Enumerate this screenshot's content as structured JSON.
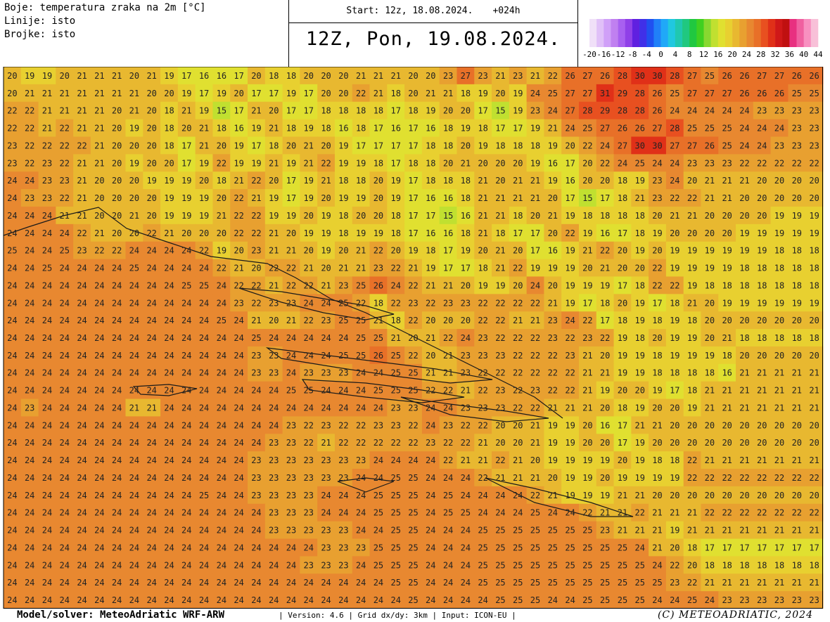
{
  "header": {
    "lines": [
      "Boje: temperatura zraka na 2m [°C]",
      "Linije: isto",
      "Brojke: isto"
    ],
    "start": "Start: 12z, 18.08.2024.",
    "lead": "+024h",
    "valid": "12Z, Pon, 19.08.2024."
  },
  "colorbar": {
    "lim": [
      -20,
      44
    ],
    "ticks": [
      -20,
      -16,
      -12,
      -8,
      -4,
      0,
      4,
      8,
      12,
      16,
      20,
      24,
      28,
      32,
      36,
      40,
      44
    ],
    "colors": [
      "#f0e0f8",
      "#e0c0f8",
      "#d0a0f8",
      "#c080f0",
      "#a860f0",
      "#9040e8",
      "#6020e0",
      "#4030e8",
      "#2050f0",
      "#2080f8",
      "#20a8f8",
      "#20c8e0",
      "#20c8b0",
      "#20c880",
      "#20c840",
      "#40d020",
      "#88d830",
      "#c0e030",
      "#e0e030",
      "#e8d030",
      "#e8b830",
      "#e8a030",
      "#e88830",
      "#e87028",
      "#e85020",
      "#e03018",
      "#d01818",
      "#c01010",
      "#e83080",
      "#f060a0",
      "#f890c0",
      "#f8c0d8"
    ]
  },
  "grid": [
    [
      20,
      19,
      19,
      20,
      21,
      21,
      21,
      20,
      21,
      19,
      17,
      16,
      16,
      17,
      20,
      18,
      18,
      20,
      20,
      20,
      21,
      21,
      21,
      20,
      20,
      23,
      27,
      23,
      21,
      23,
      21,
      22,
      26,
      27,
      26,
      28,
      30,
      30,
      28,
      27,
      25,
      26,
      26,
      27,
      27,
      26,
      26
    ],
    [
      20,
      21,
      21,
      21,
      21,
      21,
      21,
      21,
      20,
      20,
      19,
      17,
      19,
      20,
      17,
      17,
      19,
      17,
      20,
      20,
      22,
      21,
      18,
      20,
      21,
      21,
      18,
      19,
      20,
      19,
      24,
      25,
      27,
      27,
      31,
      29,
      28,
      26,
      25,
      27,
      27,
      27,
      26,
      26,
      26,
      25,
      25
    ],
    [
      22,
      22,
      21,
      21,
      21,
      21,
      20,
      21,
      20,
      18,
      21,
      19,
      15,
      17,
      21,
      20,
      17,
      17,
      18,
      18,
      18,
      18,
      17,
      18,
      19,
      20,
      20,
      17,
      15,
      19,
      23,
      24,
      27,
      28,
      29,
      28,
      28,
      26,
      24,
      24,
      24,
      24,
      24,
      23,
      23,
      23,
      23
    ],
    [
      22,
      22,
      21,
      22,
      21,
      21,
      20,
      19,
      20,
      18,
      20,
      21,
      18,
      16,
      19,
      21,
      18,
      19,
      18,
      16,
      18,
      17,
      16,
      17,
      16,
      18,
      19,
      18,
      17,
      17,
      19,
      21,
      24,
      25,
      27,
      26,
      26,
      27,
      28,
      25,
      25,
      25,
      24,
      24,
      24,
      23,
      23
    ],
    [
      23,
      22,
      22,
      22,
      22,
      21,
      20,
      20,
      20,
      18,
      17,
      21,
      20,
      19,
      17,
      18,
      20,
      21,
      20,
      19,
      17,
      17,
      17,
      17,
      18,
      18,
      20,
      19,
      18,
      18,
      18,
      19,
      20,
      22,
      24,
      27,
      30,
      30,
      27,
      27,
      26,
      25,
      24,
      24,
      23,
      23,
      23
    ],
    [
      23,
      22,
      23,
      22,
      21,
      21,
      20,
      19,
      20,
      20,
      17,
      19,
      22,
      19,
      19,
      21,
      19,
      21,
      22,
      19,
      19,
      18,
      17,
      18,
      18,
      20,
      21,
      20,
      20,
      20,
      19,
      16,
      17,
      20,
      22,
      24,
      25,
      24,
      24,
      23,
      23,
      23,
      22,
      22,
      22,
      22,
      22
    ],
    [
      24,
      24,
      23,
      23,
      21,
      20,
      20,
      20,
      19,
      19,
      19,
      20,
      18,
      21,
      22,
      20,
      17,
      19,
      21,
      18,
      18,
      20,
      19,
      17,
      18,
      18,
      18,
      21,
      20,
      21,
      21,
      19,
      16,
      20,
      20,
      18,
      19,
      23,
      24,
      20,
      21,
      21,
      21,
      20,
      20,
      20,
      20
    ],
    [
      24,
      23,
      23,
      22,
      21,
      20,
      20,
      20,
      20,
      19,
      19,
      19,
      20,
      22,
      21,
      19,
      17,
      19,
      20,
      19,
      19,
      20,
      19,
      17,
      16,
      16,
      18,
      21,
      21,
      21,
      21,
      20,
      17,
      15,
      17,
      18,
      21,
      23,
      22,
      22,
      21,
      21,
      20,
      20,
      20,
      20,
      20
    ],
    [
      24,
      24,
      24,
      21,
      21,
      20,
      20,
      21,
      20,
      19,
      19,
      19,
      21,
      22,
      22,
      19,
      19,
      20,
      19,
      18,
      20,
      20,
      18,
      17,
      17,
      15,
      16,
      21,
      21,
      18,
      20,
      21,
      19,
      18,
      18,
      18,
      18,
      20,
      21,
      21,
      20,
      20,
      20,
      20,
      19,
      19,
      19
    ],
    [
      24,
      24,
      24,
      24,
      22,
      21,
      20,
      20,
      22,
      21,
      20,
      20,
      20,
      22,
      22,
      21,
      20,
      19,
      19,
      18,
      19,
      19,
      18,
      17,
      16,
      16,
      18,
      21,
      18,
      17,
      17,
      20,
      22,
      19,
      16,
      17,
      18,
      19,
      20,
      20,
      20,
      20,
      19,
      19,
      19,
      19,
      19
    ],
    [
      25,
      24,
      24,
      25,
      23,
      22,
      22,
      24,
      24,
      24,
      24,
      22,
      19,
      20,
      23,
      21,
      21,
      20,
      19,
      20,
      21,
      22,
      20,
      19,
      18,
      17,
      19,
      20,
      21,
      20,
      17,
      16,
      19,
      21,
      22,
      20,
      19,
      20,
      19,
      19,
      19,
      19,
      19,
      19,
      18,
      18,
      18
    ],
    [
      24,
      24,
      25,
      24,
      24,
      24,
      24,
      25,
      24,
      24,
      24,
      24,
      22,
      21,
      20,
      22,
      22,
      21,
      20,
      21,
      21,
      23,
      22,
      21,
      19,
      17,
      17,
      18,
      21,
      22,
      19,
      19,
      19,
      20,
      21,
      20,
      20,
      22,
      19,
      19,
      19,
      19,
      18,
      18,
      18,
      18,
      18
    ],
    [
      24,
      24,
      24,
      24,
      24,
      24,
      24,
      24,
      24,
      24,
      25,
      25,
      24,
      22,
      22,
      21,
      22,
      22,
      21,
      23,
      25,
      26,
      24,
      22,
      21,
      21,
      20,
      19,
      19,
      20,
      24,
      20,
      19,
      19,
      19,
      17,
      18,
      22,
      22,
      19,
      18,
      18,
      18,
      18,
      18,
      18,
      18
    ],
    [
      24,
      24,
      24,
      24,
      24,
      24,
      24,
      24,
      24,
      24,
      24,
      24,
      24,
      23,
      22,
      23,
      23,
      24,
      24,
      25,
      22,
      18,
      22,
      23,
      22,
      23,
      23,
      22,
      22,
      22,
      22,
      21,
      19,
      17,
      18,
      20,
      19,
      17,
      18,
      21,
      20,
      19,
      19,
      19,
      19,
      19,
      19
    ],
    [
      24,
      24,
      24,
      24,
      24,
      24,
      24,
      24,
      24,
      24,
      24,
      24,
      25,
      24,
      21,
      20,
      21,
      22,
      23,
      25,
      25,
      21,
      18,
      22,
      20,
      20,
      20,
      22,
      22,
      21,
      21,
      23,
      24,
      22,
      17,
      18,
      19,
      18,
      19,
      18,
      20,
      20,
      20,
      20,
      20,
      20,
      20
    ],
    [
      24,
      24,
      24,
      24,
      24,
      24,
      24,
      24,
      24,
      24,
      24,
      24,
      24,
      24,
      25,
      24,
      24,
      24,
      24,
      24,
      25,
      25,
      21,
      20,
      21,
      22,
      24,
      23,
      22,
      22,
      22,
      23,
      22,
      23,
      22,
      19,
      18,
      20,
      19,
      19,
      20,
      21,
      18,
      18,
      18,
      18,
      18
    ],
    [
      24,
      24,
      24,
      24,
      24,
      24,
      24,
      24,
      24,
      24,
      24,
      24,
      24,
      24,
      23,
      23,
      24,
      24,
      24,
      25,
      25,
      26,
      25,
      22,
      20,
      21,
      23,
      23,
      23,
      22,
      22,
      22,
      23,
      21,
      20,
      19,
      19,
      18,
      19,
      19,
      19,
      18,
      20,
      20,
      20,
      20,
      20
    ],
    [
      24,
      24,
      24,
      24,
      24,
      24,
      24,
      24,
      24,
      24,
      24,
      24,
      24,
      24,
      23,
      23,
      24,
      23,
      23,
      23,
      24,
      24,
      25,
      25,
      21,
      21,
      23,
      22,
      22,
      22,
      22,
      22,
      22,
      21,
      21,
      19,
      19,
      18,
      18,
      18,
      18,
      16,
      21,
      21,
      21,
      21,
      21
    ],
    [
      24,
      24,
      24,
      24,
      24,
      24,
      24,
      24,
      24,
      24,
      24,
      24,
      24,
      24,
      24,
      24,
      25,
      25,
      24,
      24,
      24,
      25,
      25,
      25,
      22,
      22,
      21,
      22,
      23,
      22,
      23,
      22,
      22,
      21,
      19,
      20,
      20,
      19,
      17,
      18,
      21,
      21,
      21,
      21,
      21,
      21,
      21
    ],
    [
      24,
      23,
      24,
      24,
      24,
      24,
      24,
      21,
      21,
      24,
      24,
      24,
      24,
      24,
      24,
      24,
      24,
      24,
      24,
      24,
      24,
      24,
      23,
      23,
      24,
      24,
      23,
      23,
      23,
      22,
      22,
      21,
      21,
      21,
      20,
      18,
      19,
      20,
      20,
      19,
      21,
      21,
      21,
      21,
      21,
      21,
      21
    ],
    [
      24,
      24,
      24,
      24,
      24,
      24,
      24,
      24,
      24,
      24,
      24,
      24,
      24,
      24,
      24,
      24,
      23,
      22,
      23,
      22,
      22,
      23,
      23,
      22,
      24,
      23,
      22,
      22,
      20,
      20,
      21,
      19,
      19,
      20,
      16,
      17,
      21,
      21,
      20,
      20,
      20,
      20,
      20,
      20,
      20,
      20,
      20
    ],
    [
      24,
      24,
      24,
      24,
      24,
      24,
      24,
      24,
      24,
      24,
      24,
      24,
      24,
      24,
      24,
      23,
      23,
      22,
      21,
      22,
      22,
      22,
      22,
      22,
      23,
      22,
      22,
      21,
      20,
      20,
      21,
      19,
      19,
      20,
      20,
      17,
      19,
      20,
      20,
      20,
      20,
      20,
      20,
      20,
      20,
      20,
      20
    ],
    [
      24,
      24,
      24,
      24,
      24,
      24,
      24,
      24,
      24,
      24,
      24,
      24,
      24,
      24,
      23,
      23,
      23,
      23,
      23,
      23,
      23,
      24,
      24,
      24,
      24,
      22,
      21,
      21,
      22,
      21,
      20,
      19,
      19,
      19,
      19,
      20,
      19,
      18,
      18,
      22,
      21,
      21,
      21,
      21,
      21,
      21,
      21
    ],
    [
      24,
      24,
      24,
      24,
      24,
      24,
      24,
      24,
      24,
      24,
      24,
      24,
      24,
      24,
      23,
      23,
      23,
      23,
      23,
      23,
      24,
      24,
      25,
      25,
      24,
      24,
      24,
      22,
      21,
      21,
      21,
      20,
      19,
      19,
      20,
      19,
      19,
      19,
      19,
      22,
      22,
      22,
      22,
      22,
      22,
      22,
      22
    ],
    [
      24,
      24,
      24,
      24,
      24,
      24,
      24,
      24,
      24,
      24,
      24,
      25,
      24,
      24,
      23,
      23,
      23,
      23,
      24,
      24,
      24,
      25,
      25,
      25,
      24,
      25,
      24,
      24,
      24,
      24,
      22,
      21,
      19,
      19,
      19,
      21,
      21,
      20,
      20,
      20,
      20,
      20,
      20,
      20,
      20,
      20,
      20
    ],
    [
      24,
      24,
      24,
      24,
      24,
      24,
      24,
      24,
      24,
      24,
      24,
      24,
      24,
      24,
      24,
      23,
      23,
      23,
      24,
      24,
      24,
      25,
      25,
      25,
      24,
      25,
      25,
      24,
      24,
      24,
      25,
      24,
      24,
      22,
      21,
      21,
      22,
      21,
      21,
      21,
      22,
      22,
      22,
      22,
      22,
      22,
      22
    ],
    [
      24,
      24,
      24,
      24,
      24,
      24,
      24,
      24,
      24,
      24,
      24,
      24,
      24,
      24,
      24,
      23,
      23,
      23,
      23,
      23,
      24,
      24,
      25,
      25,
      24,
      24,
      24,
      25,
      25,
      25,
      25,
      25,
      25,
      25,
      23,
      21,
      21,
      21,
      19,
      21,
      21,
      21,
      21,
      21,
      21,
      21,
      21
    ],
    [
      24,
      24,
      24,
      24,
      24,
      24,
      24,
      24,
      24,
      24,
      24,
      24,
      24,
      24,
      24,
      24,
      24,
      24,
      23,
      23,
      23,
      25,
      25,
      25,
      24,
      24,
      24,
      25,
      25,
      25,
      25,
      25,
      25,
      25,
      25,
      25,
      24,
      21,
      20,
      18,
      17,
      17,
      17,
      17,
      17,
      17,
      17
    ],
    [
      24,
      24,
      24,
      24,
      24,
      24,
      24,
      24,
      24,
      24,
      24,
      24,
      24,
      24,
      24,
      24,
      24,
      23,
      23,
      23,
      24,
      25,
      25,
      25,
      24,
      24,
      24,
      25,
      25,
      25,
      25,
      25,
      25,
      25,
      25,
      25,
      25,
      24,
      22,
      20,
      18,
      18,
      18,
      18,
      18,
      18,
      18
    ],
    [
      24,
      24,
      24,
      24,
      24,
      24,
      24,
      24,
      24,
      24,
      24,
      24,
      24,
      24,
      24,
      24,
      24,
      24,
      24,
      24,
      24,
      24,
      25,
      25,
      24,
      24,
      24,
      25,
      25,
      25,
      25,
      25,
      25,
      25,
      25,
      25,
      25,
      25,
      23,
      22,
      21,
      21,
      21,
      21,
      21,
      21,
      21
    ],
    [
      24,
      24,
      24,
      24,
      24,
      24,
      24,
      24,
      24,
      24,
      24,
      24,
      24,
      24,
      24,
      24,
      24,
      24,
      24,
      24,
      24,
      24,
      24,
      25,
      24,
      24,
      24,
      24,
      25,
      25,
      25,
      24,
      24,
      25,
      25,
      25,
      25,
      24,
      24,
      25,
      24,
      23,
      23,
      23,
      23,
      23,
      23
    ]
  ],
  "footer": {
    "model": "Model/solver: MeteoAdriatic WRF-ARW",
    "info": "| Version: 4.6 | Grid dx/dy: 3km | Input: ICON-EU |",
    "copyright": "(C) METEOADRIATIC, 2024"
  }
}
